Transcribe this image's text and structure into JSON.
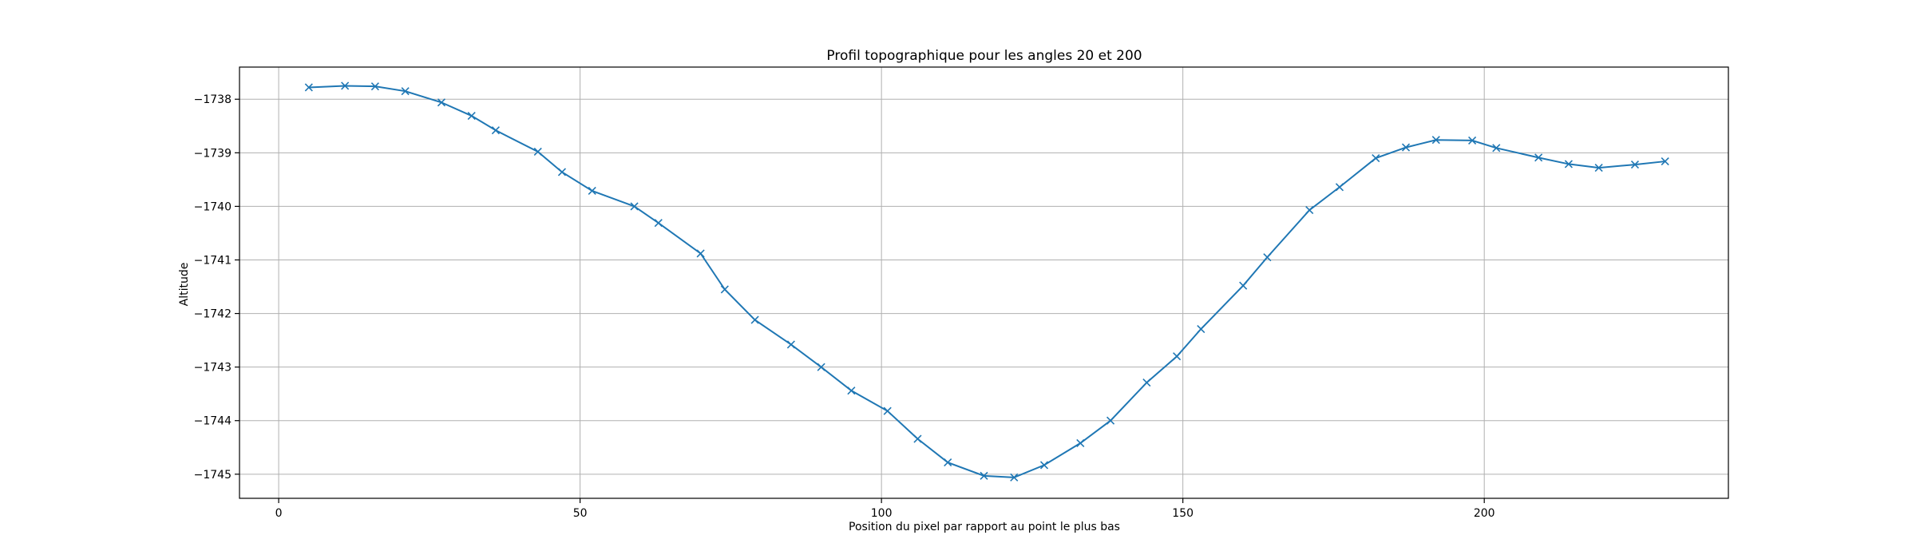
{
  "chart_data": {
    "type": "line",
    "title": "Profil topographique pour les angles 20 et 200",
    "xlabel": "Position du pixel par rapport au point le plus bas",
    "ylabel": "Altitude",
    "xlim": [
      -6.5,
      240.5
    ],
    "ylim": [
      -1745.45,
      -1737.4
    ],
    "xticks": [
      0,
      50,
      100,
      150,
      200
    ],
    "yticks": [
      -1745,
      -1744,
      -1743,
      -1742,
      -1741,
      -1740,
      -1739,
      -1738
    ],
    "grid": true,
    "marker": "x",
    "color": "#1f77b4",
    "series": [
      {
        "x": [
          5,
          11,
          16,
          21,
          27,
          32,
          36,
          43,
          47,
          52,
          59,
          63,
          70,
          74,
          79,
          85,
          90,
          95,
          101,
          106,
          111,
          117,
          122,
          127,
          133,
          138,
          144,
          149,
          153,
          160,
          164,
          171,
          176,
          182,
          187,
          192,
          198,
          202,
          209,
          214,
          219,
          225,
          230
        ],
        "y": [
          -1737.78,
          -1737.75,
          -1737.76,
          -1737.85,
          -1738.06,
          -1738.31,
          -1738.58,
          -1738.98,
          -1739.36,
          -1739.71,
          -1740.0,
          -1740.31,
          -1740.88,
          -1741.55,
          -1742.12,
          -1742.58,
          -1743.0,
          -1743.44,
          -1743.82,
          -1744.34,
          -1744.78,
          -1745.03,
          -1745.06,
          -1744.83,
          -1744.42,
          -1744.0,
          -1743.29,
          -1742.8,
          -1742.29,
          -1741.48,
          -1740.95,
          -1740.07,
          -1739.64,
          -1739.1,
          -1738.9,
          -1738.76,
          -1738.77,
          -1738.91,
          -1739.09,
          -1739.21,
          -1739.28,
          -1739.22,
          -1739.16
        ]
      }
    ]
  }
}
